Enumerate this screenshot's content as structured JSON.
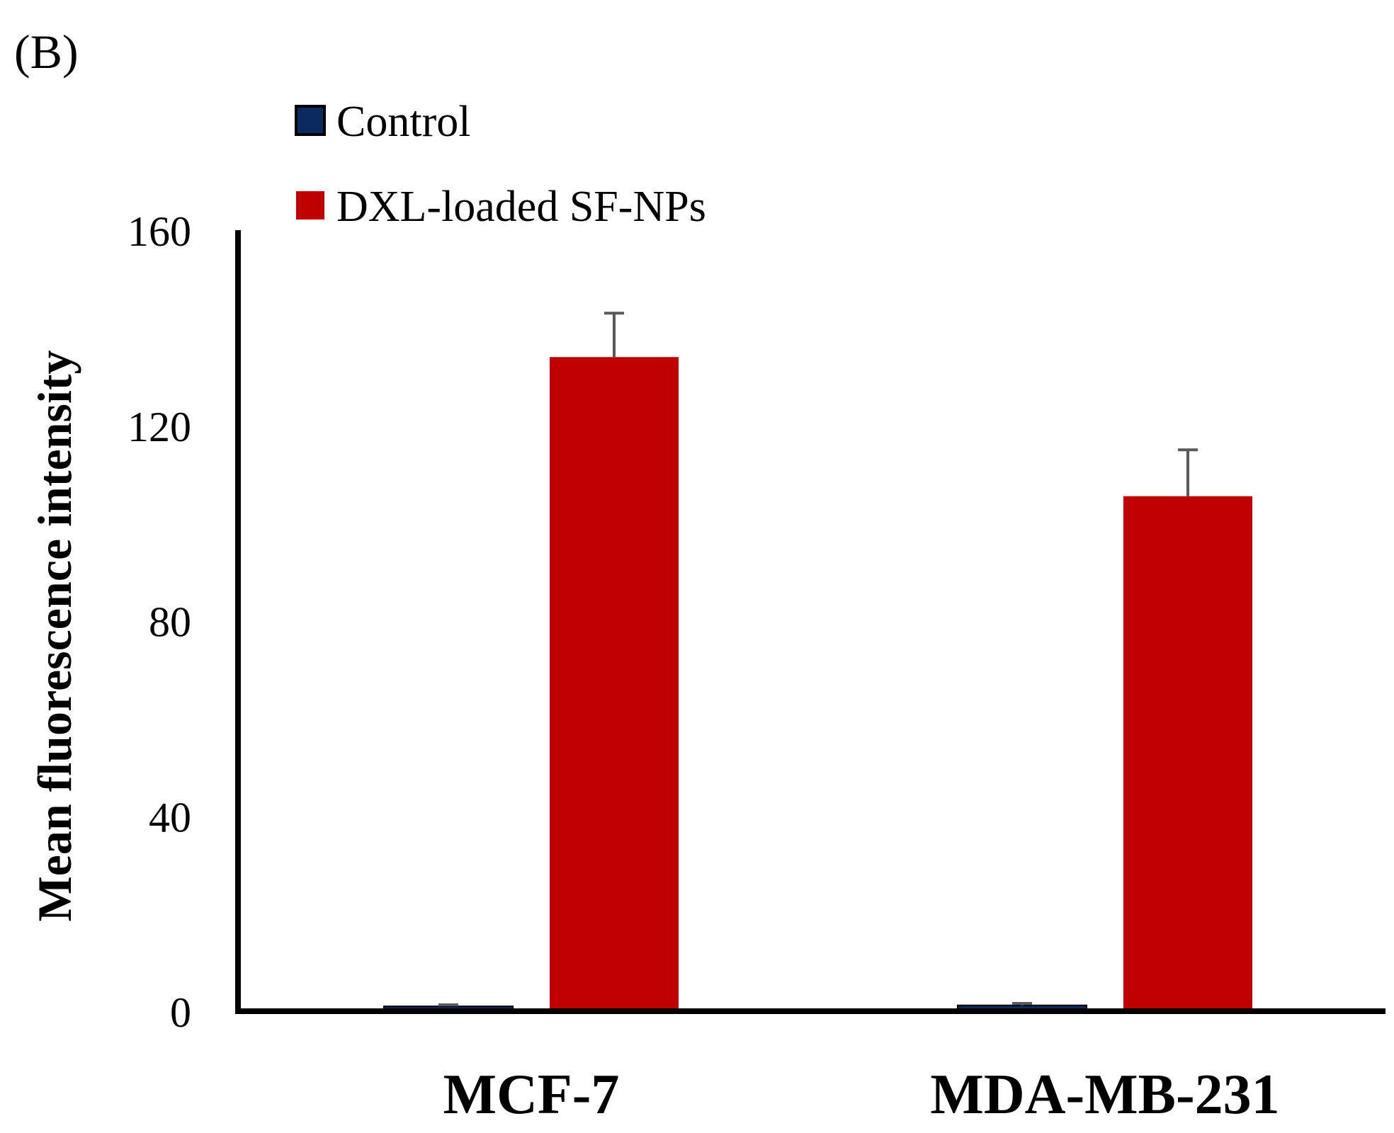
{
  "panel_label": "(B)",
  "chart_data": {
    "type": "bar",
    "title": "",
    "xlabel": "",
    "ylabel": "Mean fluorescence intensity",
    "ylim": [
      0,
      160
    ],
    "yticks": [
      0,
      40,
      80,
      120,
      160
    ],
    "yticks_labels": [
      "0",
      "40",
      "80",
      "120",
      "160"
    ],
    "grid": false,
    "legend_position": "top-left",
    "categories": [
      "MCF-7",
      "MDA-MB-231"
    ],
    "series": [
      {
        "name": "Control",
        "color": "#0b2a5e",
        "values": [
          1,
          1.2
        ],
        "errors": [
          0.3,
          0.4
        ]
      },
      {
        "name": "DXL-loaded SF-NPs",
        "color": "#c00000",
        "values": [
          134,
          105.5
        ],
        "errors": [
          9,
          9.5
        ]
      }
    ]
  }
}
